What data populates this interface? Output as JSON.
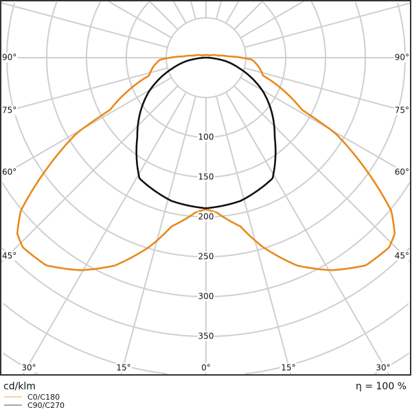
{
  "chart_data": {
    "type": "polar",
    "unit_label": "cd/klm",
    "efficiency_label": "η = 100 %",
    "radial_ticks": [
      100,
      150,
      200,
      250,
      300,
      350
    ],
    "radial_tick_labels": [
      "100",
      "150",
      "200",
      "250",
      "300",
      "350"
    ],
    "angle_labels": {
      "left": [
        "90°",
        "75°",
        "60°",
        "45°"
      ],
      "right": [
        "90°",
        "75°",
        "60°",
        "45°"
      ],
      "bottom": [
        "30°",
        "15°",
        "0°",
        "15°",
        "30°"
      ]
    },
    "grid": true,
    "legend_position": "bottom-left",
    "series": [
      {
        "name": "C0/C180",
        "color": "#e8891a",
        "angles": [
          0,
          4,
          11.5,
          16.7,
          23.7,
          30.6,
          37.6,
          44,
          47,
          50.4,
          55,
          59.8,
          61.5,
          72.6,
          80.4,
          87.4,
          93.5,
          100,
          120,
          180
        ],
        "values": [
          190,
          195,
          216,
          248,
          285,
          310,
          329,
          331,
          324,
          302,
          245,
          187,
          137,
          75,
          67,
          58,
          28,
          15,
          5,
          3
        ]
      },
      {
        "name": "C90/C270",
        "color": "#111111",
        "angles": [
          0,
          13.5,
          28.9,
          40.8,
          50,
          59.4,
          72,
          80,
          85,
          90
        ],
        "values": [
          189,
          185,
          173,
          132,
          108,
          83,
          45,
          25,
          10,
          0
        ]
      }
    ]
  }
}
